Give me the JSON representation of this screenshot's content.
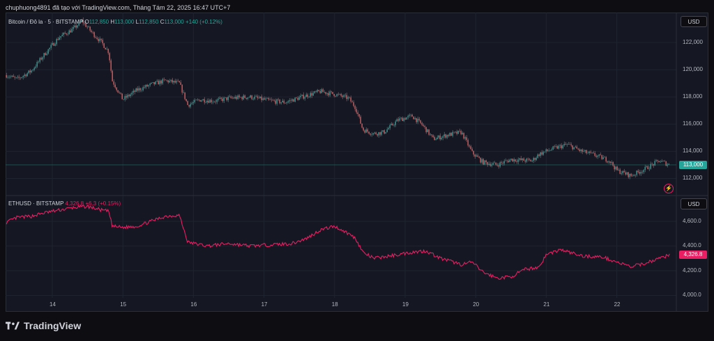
{
  "header": {
    "text": "chuphuong4891 đã tạo với TradingView.com, Tháng Tám 22, 2025 16:47 UTC+7"
  },
  "top_pane": {
    "symbol": "Bitcoin / Đô la · 5 · BITSTAMP",
    "o_label": "O",
    "o_value": "112,850",
    "h_label": "H",
    "h_value": "113,000",
    "l_label": "L",
    "l_value": "112,850",
    "c_label": "C",
    "c_value": "113,000",
    "change": "+140 (+0.12%)",
    "currency": "USD",
    "price_tag": "113,000",
    "y_ticks": [
      "122,000",
      "120,000",
      "118,000",
      "116,000",
      "114,000",
      "112,000"
    ]
  },
  "bottom_pane": {
    "symbol": "ETHUSD · BITSTAMP",
    "value": "4,326.8",
    "change": "+6.3 (+0.15%)",
    "currency": "USD",
    "price_tag": "4,326.8",
    "y_ticks": [
      "4,600.0",
      "4,400.0",
      "4,200.0",
      "4,000.0"
    ]
  },
  "x_ticks": [
    "14",
    "15",
    "16",
    "17",
    "18",
    "19",
    "20",
    "21",
    "22"
  ],
  "colors": {
    "up": "#26a69a",
    "down": "#ef5350",
    "eth": "#e91e63",
    "grid": "#1f2330"
  },
  "footer": {
    "brand": "TradingView"
  },
  "chart_data": [
    {
      "type": "line",
      "series": [
        {
          "name": "Bitcoin / Đô la · 5 · BITSTAMP",
          "x": [
            13.35,
            13.5,
            13.7,
            13.9,
            14.1,
            14.3,
            14.42,
            14.55,
            14.7,
            14.8,
            14.85,
            15.0,
            15.2,
            15.4,
            15.6,
            15.8,
            15.92,
            16.1,
            16.3,
            16.5,
            16.8,
            17.1,
            17.3,
            17.6,
            17.8,
            18.0,
            18.2,
            18.3,
            18.4,
            18.55,
            18.7,
            18.9,
            19.1,
            19.25,
            19.4,
            19.6,
            19.8,
            19.95,
            20.1,
            20.3,
            20.5,
            20.8,
            20.9,
            21.1,
            21.3,
            21.5,
            21.7,
            21.9,
            22.0,
            22.2,
            22.4,
            22.6,
            22.75
          ],
          "values": [
            119.6,
            119.3,
            119.9,
            121.2,
            122.4,
            123.0,
            123.6,
            122.8,
            122.0,
            121.3,
            119.2,
            117.8,
            118.5,
            118.9,
            119.2,
            119.0,
            117.4,
            117.8,
            117.7,
            117.9,
            118.0,
            117.7,
            117.6,
            118.1,
            118.4,
            118.2,
            117.9,
            117.2,
            115.6,
            115.3,
            115.4,
            116.3,
            116.6,
            115.9,
            114.9,
            115.2,
            115.4,
            113.9,
            113.2,
            113.0,
            113.4,
            113.3,
            113.8,
            114.2,
            114.5,
            114.0,
            113.7,
            113.3,
            112.6,
            112.2,
            112.7,
            113.3,
            113.0
          ]
        }
      ],
      "ylim": [
        111.0,
        124.0
      ],
      "ytick_values": [
        122.0,
        120.0,
        118.0,
        116.0,
        114.0,
        112.0
      ],
      "last": 113.0,
      "grid": true
    },
    {
      "type": "line",
      "series": [
        {
          "name": "ETHUSD · BITSTAMP",
          "x": [
            13.35,
            13.5,
            13.7,
            13.9,
            14.1,
            14.3,
            14.5,
            14.7,
            14.8,
            14.85,
            15.0,
            15.2,
            15.4,
            15.6,
            15.8,
            15.92,
            16.2,
            16.5,
            16.8,
            17.1,
            17.4,
            17.6,
            17.8,
            18.0,
            18.2,
            18.3,
            18.4,
            18.55,
            18.8,
            19.1,
            19.3,
            19.5,
            19.8,
            19.95,
            20.1,
            20.3,
            20.5,
            20.7,
            20.9,
            21.0,
            21.2,
            21.5,
            21.8,
            22.0,
            22.2,
            22.4,
            22.6,
            22.75
          ],
          "values": [
            4590,
            4630,
            4640,
            4670,
            4690,
            4710,
            4720,
            4690,
            4680,
            4560,
            4550,
            4560,
            4600,
            4640,
            4650,
            4430,
            4400,
            4420,
            4400,
            4410,
            4420,
            4460,
            4530,
            4560,
            4500,
            4460,
            4350,
            4300,
            4320,
            4350,
            4360,
            4300,
            4250,
            4270,
            4190,
            4140,
            4150,
            4210,
            4230,
            4330,
            4370,
            4320,
            4310,
            4270,
            4230,
            4260,
            4300,
            4327
          ]
        }
      ],
      "ylim": [
        3980,
        4780
      ],
      "ytick_values": [
        4600,
        4400,
        4200,
        4000
      ],
      "last": 4326.8,
      "grid": true
    }
  ]
}
